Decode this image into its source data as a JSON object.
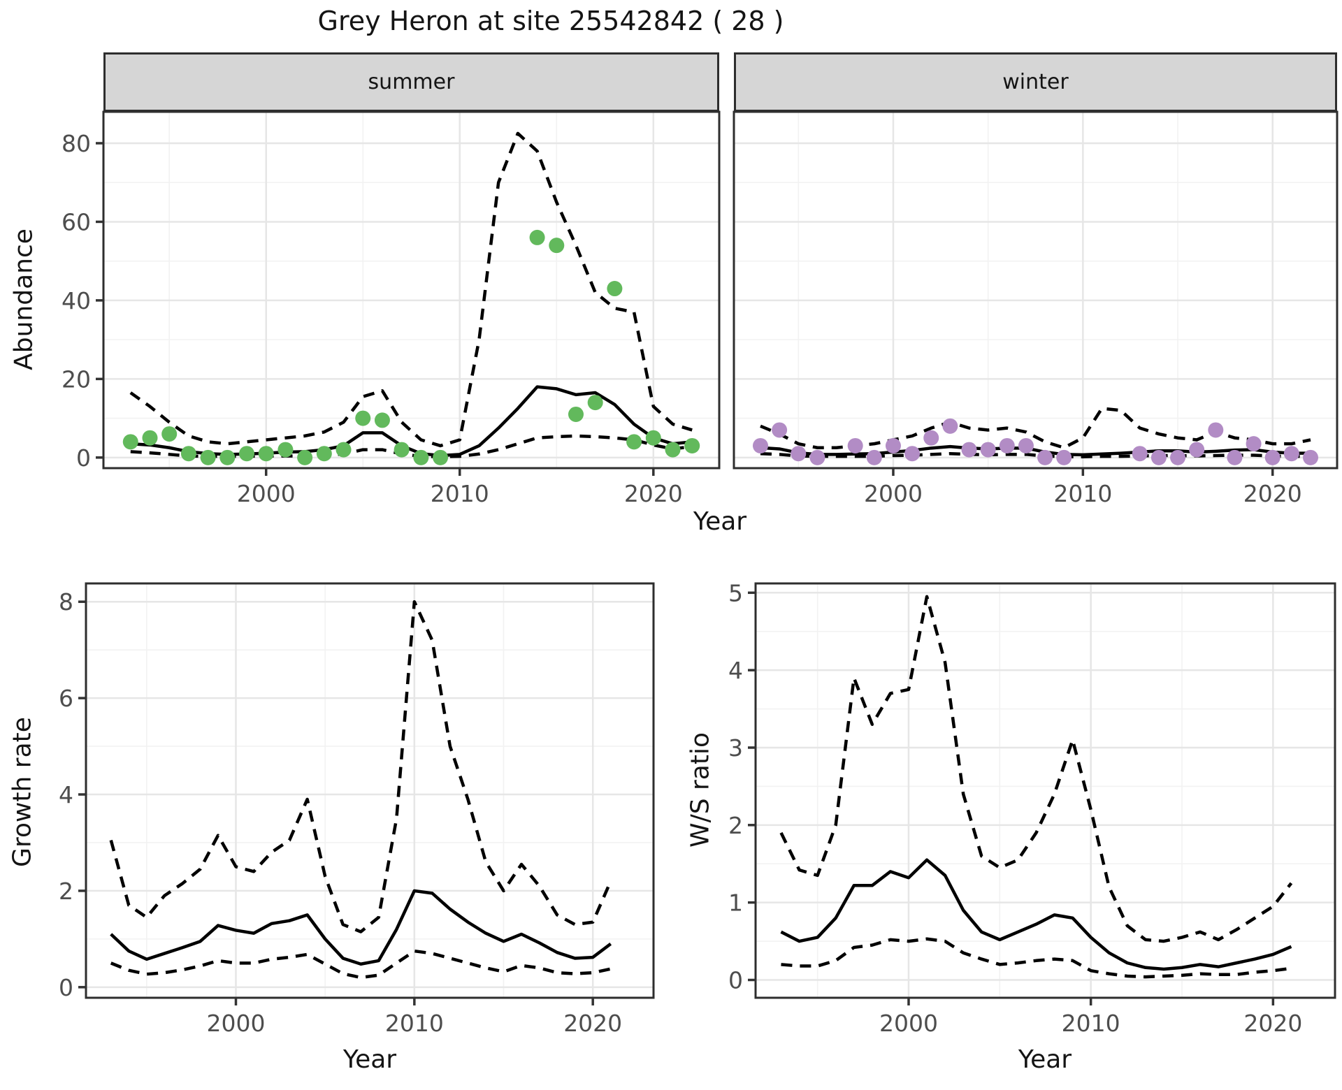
{
  "title": "Grey Heron at site 25542842 ( 28 )",
  "axis_titles": {
    "abundance": "Abundance",
    "year_top": "Year",
    "growth_rate": "Growth rate",
    "year_growth": "Year",
    "ws_ratio": "W/S ratio",
    "year_ws": "Year"
  },
  "style": {
    "point_green": "#62b95c",
    "point_purple": "#b28cc5",
    "line_color": "#000000",
    "strip_bg": "#d6d6d6",
    "grid_major": "#e6e6e6",
    "grid_minor": "#f2f2f2",
    "tick_label_color": "#4d4d4d",
    "panel_border": "#2e2e2e"
  },
  "chart_data": [
    {
      "id": "abundance_summer",
      "type": "line",
      "facet_label": "summer",
      "xlabel": "Year",
      "ylabel": "Abundance",
      "legend_position": "none",
      "grid": true,
      "xticks": [
        2000,
        2010,
        2020
      ],
      "yticks": [
        0,
        20,
        40,
        60,
        80
      ],
      "xlim": [
        1991.6,
        2023.4
      ],
      "ylim": [
        -2.7,
        88
      ],
      "x": [
        1993,
        1994,
        1995,
        1996,
        1997,
        1998,
        1999,
        2000,
        2001,
        2002,
        2003,
        2004,
        2005,
        2006,
        2007,
        2008,
        2009,
        2010,
        2011,
        2012,
        2013,
        2014,
        2015,
        2016,
        2017,
        2018,
        2019,
        2020,
        2021,
        2022
      ],
      "series": [
        {
          "name": "fitted",
          "style": "solid",
          "values": [
            3.5,
            3.2,
            2.5,
            1.5,
            1.0,
            0.8,
            0.9,
            1.1,
            1.4,
            1.5,
            2.0,
            3.0,
            6.3,
            6.3,
            3.0,
            1.0,
            0.5,
            0.8,
            3.0,
            7.5,
            12.5,
            18.0,
            17.5,
            16.0,
            16.5,
            13.5,
            8.5,
            5.0,
            3.5,
            4.0
          ]
        },
        {
          "name": "upper_ci",
          "style": "dashed",
          "values": [
            16.5,
            13,
            9,
            5.5,
            4,
            3.5,
            4,
            4.5,
            5,
            5.5,
            6.5,
            9,
            15.5,
            17,
            9,
            4.5,
            3,
            4.5,
            30,
            70,
            82.5,
            78,
            65,
            54,
            42,
            38,
            37,
            13,
            8.5,
            7
          ]
        },
        {
          "name": "lower_ci",
          "style": "dashed",
          "values": [
            1.5,
            1.2,
            0.8,
            0.4,
            0.3,
            0.3,
            0.3,
            0.4,
            0.4,
            0.4,
            0.5,
            0.9,
            2.0,
            2.0,
            0.9,
            0.3,
            0.2,
            0.3,
            0.9,
            2.0,
            3.5,
            5.0,
            5.3,
            5.5,
            5.3,
            5.0,
            4.5,
            3.2,
            2.2,
            2.8
          ]
        }
      ],
      "points": {
        "name": "observed_counts",
        "color": "#62b95c",
        "x": [
          1993,
          1994,
          1995,
          1996,
          1997,
          1998,
          1999,
          2000,
          2001,
          2002,
          2003,
          2004,
          2005,
          2006,
          2007,
          2008,
          2009,
          2014,
          2015,
          2016,
          2017,
          2018,
          2019,
          2020,
          2021,
          2022
        ],
        "y": [
          4,
          5,
          6,
          1,
          0,
          0,
          1,
          1,
          2,
          0,
          1,
          2,
          10,
          9.5,
          2,
          0,
          0,
          56,
          54,
          11,
          14,
          43,
          4,
          5,
          2,
          3
        ]
      }
    },
    {
      "id": "abundance_winter",
      "type": "line",
      "facet_label": "winter",
      "xlabel": "Year",
      "ylabel": "Abundance",
      "legend_position": "none",
      "grid": true,
      "xticks": [
        2000,
        2010,
        2020
      ],
      "yticks": [
        0,
        20,
        40,
        60,
        80
      ],
      "xlim": [
        1991.6,
        2023.4
      ],
      "ylim": [
        -2.7,
        88
      ],
      "x": [
        1993,
        1994,
        1995,
        1996,
        1997,
        1998,
        1999,
        2000,
        2001,
        2002,
        2003,
        2004,
        2005,
        2006,
        2007,
        2008,
        2009,
        2010,
        2011,
        2012,
        2013,
        2014,
        2015,
        2016,
        2017,
        2018,
        2019,
        2020,
        2021,
        2022
      ],
      "series": [
        {
          "name": "fitted",
          "style": "solid",
          "values": [
            2.5,
            2.2,
            1.2,
            0.8,
            0.8,
            0.9,
            1.0,
            1.4,
            1.8,
            2.4,
            2.8,
            2.4,
            2.2,
            2.4,
            2.4,
            1.4,
            0.8,
            0.7,
            0.9,
            1.1,
            1.4,
            1.7,
            1.7,
            1.4,
            1.6,
            1.9,
            2.0,
            1.4,
            1.1,
            1.1
          ]
        },
        {
          "name": "upper_ci",
          "style": "dashed",
          "values": [
            8,
            6,
            3.5,
            2.5,
            2.5,
            3,
            3.5,
            4.5,
            5.5,
            7.5,
            9,
            7.5,
            7,
            7.5,
            6.5,
            4,
            2.5,
            5,
            12.5,
            12,
            7.5,
            6,
            5,
            4.5,
            6.5,
            5,
            4.5,
            3.5,
            3.5,
            4.5
          ]
        },
        {
          "name": "lower_ci",
          "style": "dashed",
          "values": [
            1,
            0.8,
            0.4,
            0.3,
            0.3,
            0.3,
            0.3,
            0.5,
            0.6,
            0.8,
            1,
            0.8,
            0.7,
            0.8,
            0.8,
            0.4,
            0.2,
            0.2,
            0.3,
            0.3,
            0.4,
            0.5,
            0.5,
            0.4,
            0.5,
            0.6,
            0.6,
            0.4,
            0.3,
            0.3
          ]
        }
      ],
      "points": {
        "name": "observed_counts",
        "color": "#b28cc5",
        "x": [
          1993,
          1994,
          1995,
          1996,
          1998,
          1999,
          2000,
          2001,
          2002,
          2003,
          2004,
          2005,
          2006,
          2007,
          2008,
          2009,
          2013,
          2014,
          2015,
          2016,
          2017,
          2018,
          2019,
          2020,
          2021,
          2022
        ],
        "y": [
          3,
          7,
          1,
          0,
          3,
          0,
          3,
          1,
          5,
          8,
          2,
          2,
          3,
          3,
          0,
          0,
          1,
          0,
          0,
          2,
          7,
          0,
          3.5,
          0,
          1,
          0
        ]
      }
    },
    {
      "id": "growth_rate",
      "type": "line",
      "facet_label": "",
      "xlabel": "Year",
      "ylabel": "Growth rate",
      "legend_position": "none",
      "grid": true,
      "xticks": [
        2000,
        2010,
        2020
      ],
      "yticks": [
        0,
        2,
        4,
        6,
        8
      ],
      "xlim": [
        1991.6,
        2023.4
      ],
      "ylim": [
        -0.22,
        8.38
      ],
      "x": [
        1993,
        1994,
        1995,
        1996,
        1997,
        1998,
        1999,
        2000,
        2001,
        2002,
        2003,
        2004,
        2005,
        2006,
        2007,
        2008,
        2009,
        2010,
        2011,
        2012,
        2013,
        2014,
        2015,
        2016,
        2017,
        2018,
        2019,
        2020,
        2021
      ],
      "series": [
        {
          "name": "fitted",
          "style": "solid",
          "values": [
            1.1,
            0.75,
            0.58,
            0.7,
            0.82,
            0.95,
            1.28,
            1.18,
            1.12,
            1.32,
            1.38,
            1.5,
            1.0,
            0.6,
            0.48,
            0.55,
            1.2,
            2.0,
            1.95,
            1.62,
            1.35,
            1.12,
            0.95,
            1.1,
            0.92,
            0.72,
            0.6,
            0.62,
            0.9
          ]
        },
        {
          "name": "upper_ci",
          "style": "dashed",
          "values": [
            3.05,
            1.7,
            1.45,
            1.9,
            2.15,
            2.45,
            3.15,
            2.5,
            2.4,
            2.8,
            3.05,
            3.9,
            2.3,
            1.3,
            1.15,
            1.45,
            3.5,
            8.0,
            7.2,
            5.0,
            3.9,
            2.6,
            2.0,
            2.55,
            2.1,
            1.5,
            1.3,
            1.35,
            2.2
          ]
        },
        {
          "name": "lower_ci",
          "style": "dashed",
          "values": [
            0.5,
            0.35,
            0.27,
            0.3,
            0.36,
            0.44,
            0.55,
            0.5,
            0.5,
            0.58,
            0.62,
            0.68,
            0.48,
            0.28,
            0.2,
            0.25,
            0.5,
            0.75,
            0.7,
            0.6,
            0.5,
            0.4,
            0.32,
            0.45,
            0.4,
            0.3,
            0.28,
            0.3,
            0.38
          ]
        }
      ],
      "points": null
    },
    {
      "id": "ws_ratio",
      "type": "line",
      "facet_label": "",
      "xlabel": "Year",
      "ylabel": "W/S ratio",
      "legend_position": "none",
      "grid": true,
      "xticks": [
        2000,
        2010,
        2020
      ],
      "yticks": [
        0,
        1,
        2,
        3,
        4,
        5
      ],
      "xlim": [
        1991.6,
        2023.4
      ],
      "ylim": [
        -0.23,
        5.12
      ],
      "x": [
        1993,
        1994,
        1995,
        1996,
        1997,
        1998,
        1999,
        2000,
        2001,
        2002,
        2003,
        2004,
        2005,
        2006,
        2007,
        2008,
        2009,
        2010,
        2011,
        2012,
        2013,
        2014,
        2015,
        2016,
        2017,
        2018,
        2019,
        2020,
        2021
      ],
      "series": [
        {
          "name": "fitted",
          "style": "solid",
          "values": [
            0.62,
            0.5,
            0.55,
            0.8,
            1.22,
            1.22,
            1.4,
            1.32,
            1.55,
            1.35,
            0.9,
            0.62,
            0.52,
            0.62,
            0.72,
            0.84,
            0.8,
            0.55,
            0.35,
            0.22,
            0.16,
            0.14,
            0.16,
            0.2,
            0.17,
            0.22,
            0.27,
            0.33,
            0.43
          ]
        },
        {
          "name": "upper_ci",
          "style": "dashed",
          "values": [
            1.9,
            1.42,
            1.35,
            2.0,
            3.9,
            3.3,
            3.7,
            3.75,
            4.95,
            4.1,
            2.4,
            1.6,
            1.45,
            1.55,
            1.9,
            2.4,
            3.1,
            2.2,
            1.2,
            0.7,
            0.52,
            0.5,
            0.55,
            0.62,
            0.52,
            0.65,
            0.8,
            0.95,
            1.25
          ]
        },
        {
          "name": "lower_ci",
          "style": "dashed",
          "values": [
            0.2,
            0.18,
            0.18,
            0.25,
            0.42,
            0.45,
            0.52,
            0.5,
            0.53,
            0.5,
            0.35,
            0.27,
            0.2,
            0.22,
            0.25,
            0.27,
            0.25,
            0.12,
            0.08,
            0.05,
            0.04,
            0.05,
            0.06,
            0.08,
            0.07,
            0.07,
            0.1,
            0.12,
            0.15
          ]
        }
      ],
      "points": null
    }
  ]
}
